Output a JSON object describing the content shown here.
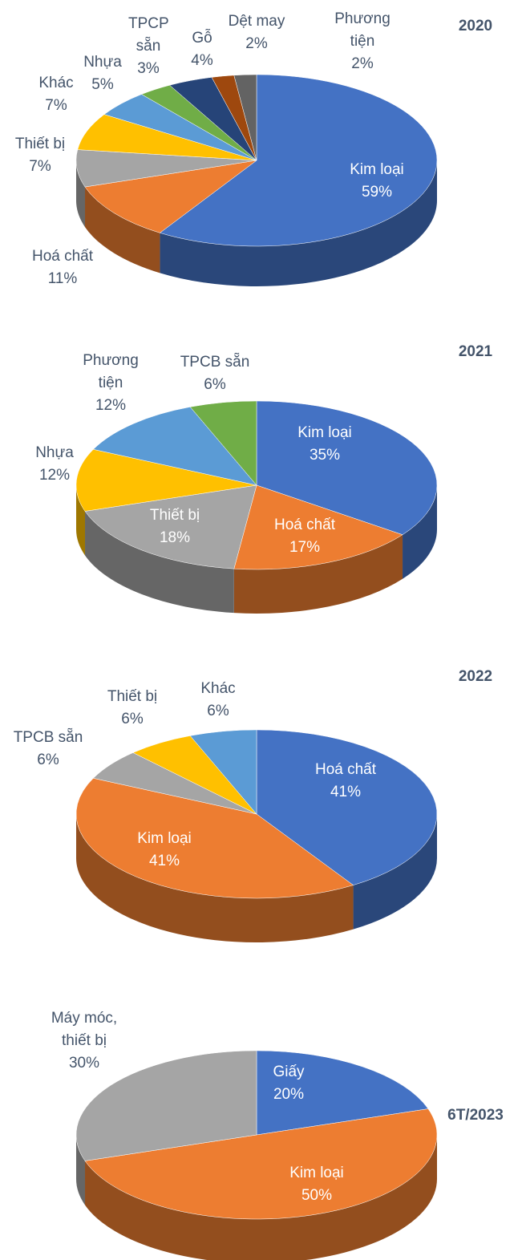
{
  "chart_data": [
    {
      "type": "pie",
      "title": "2020",
      "categories": [
        "Kim loại",
        "Hoá chất",
        "Thiết bị",
        "Khác",
        "Nhựa",
        "TPCP sẵn",
        "Gỗ",
        "Dệt may",
        "Phương tiện"
      ],
      "values": [
        59,
        11,
        7,
        7,
        5,
        3,
        4,
        2,
        2
      ],
      "value_labels": [
        "59%",
        "11%",
        "7%",
        "7%",
        "5%",
        "3%",
        "4%",
        "2%",
        "2%"
      ],
      "colors": [
        "#4472c4",
        "#ed7d31",
        "#a5a5a5",
        "#ffc000",
        "#5b9bd5",
        "#70ad47",
        "#264478",
        "#9e480e",
        "#636363"
      ]
    },
    {
      "type": "pie",
      "title": "2021",
      "categories": [
        "Kim loại",
        "Hoá chất",
        "Thiết bị",
        "Nhựa",
        "Phương tiện",
        "TPCB sẵn"
      ],
      "values": [
        35,
        17,
        18,
        12,
        12,
        6
      ],
      "value_labels": [
        "35%",
        "17%",
        "18%",
        "12%",
        "12%",
        "6%"
      ],
      "colors": [
        "#4472c4",
        "#ed7d31",
        "#a5a5a5",
        "#ffc000",
        "#5b9bd5",
        "#70ad47"
      ]
    },
    {
      "type": "pie",
      "title": "2022",
      "categories": [
        "Hoá chất",
        "Kim loại",
        "TPCB sẵn",
        "Thiết bị",
        "Khác"
      ],
      "values": [
        41,
        41,
        6,
        6,
        6
      ],
      "value_labels": [
        "41%",
        "41%",
        "6%",
        "6%",
        "6%"
      ],
      "colors": [
        "#4472c4",
        "#ed7d31",
        "#a5a5a5",
        "#ffc000",
        "#5b9bd5"
      ]
    },
    {
      "type": "pie",
      "title": "6T/2023",
      "categories": [
        "Giấy",
        "Kim loại",
        "Máy móc, thiết bị"
      ],
      "values": [
        20,
        50,
        30
      ],
      "value_labels": [
        "20%",
        "50%",
        "30%"
      ],
      "colors": [
        "#4472c4",
        "#ed7d31",
        "#a5a5a5"
      ]
    }
  ]
}
